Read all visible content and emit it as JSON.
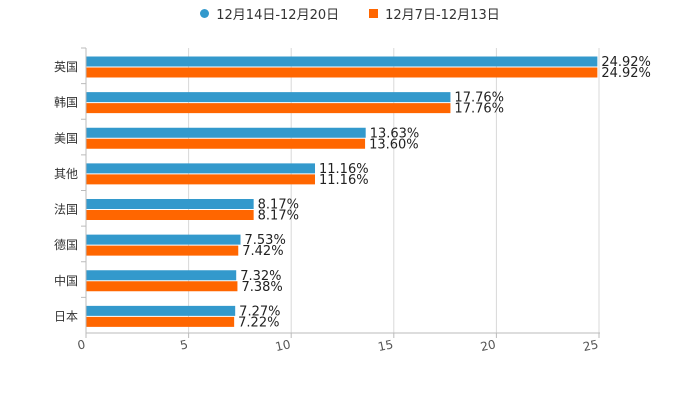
{
  "chart_data": {
    "type": "bar",
    "orientation": "horizontal",
    "categories": [
      "英国",
      "韩国",
      "美国",
      "其他",
      "法国",
      "德国",
      "中国",
      "日本"
    ],
    "series": [
      {
        "name": "12月14日-12月20日",
        "color": "#3399cc",
        "values": [
          24.92,
          17.76,
          13.63,
          11.16,
          8.17,
          7.53,
          7.32,
          7.27
        ],
        "labels": [
          "24.92%",
          "17.76%",
          "13.63%",
          "11.16%",
          "8.17%",
          "7.53%",
          "7.32%",
          "7.27%"
        ]
      },
      {
        "name": "12月7日-12月13日",
        "color": "#ff6600",
        "values": [
          24.92,
          17.76,
          13.6,
          11.16,
          8.17,
          7.42,
          7.38,
          7.22
        ],
        "labels": [
          "24.92%",
          "17.76%",
          "13.60%",
          "11.16%",
          "8.17%",
          "7.42%",
          "7.38%",
          "7.22%"
        ]
      }
    ],
    "xlim": [
      0,
      25
    ],
    "xticks": [
      0,
      5,
      10,
      15,
      20,
      25
    ],
    "grid": true,
    "legend_position": "top-center"
  }
}
